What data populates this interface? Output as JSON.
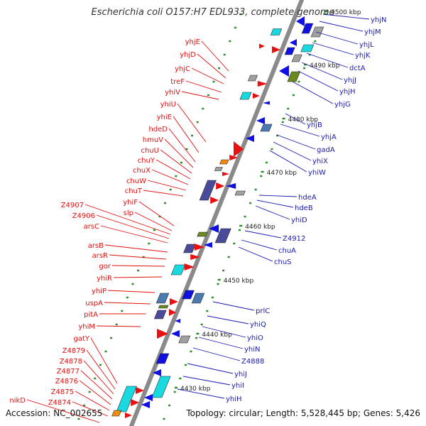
{
  "title": "Escherichia coli O157:H7 EDL933, complete genome",
  "footer": {
    "accession": "Accession: NC_002655",
    "info": "Topology: circular; Length: 5,528,445 bp; Genes: 5,426"
  },
  "colors": {
    "backbone": "#8a8a8a",
    "tick": "#2a8f2a",
    "forward_label": "#e01010",
    "reverse_label": "#1a1ab0",
    "gene_red": "#e81010",
    "gene_blue": "#1010e0",
    "gene_cyan": "#18d8e0",
    "gene_gray": "#a0a0a0",
    "gene_olive": "#6a8a20",
    "gene_purple": "#4a4a9a",
    "gene_orange": "#f08a10",
    "gene_steel": "#4a7ab0"
  },
  "scale_labels": [
    "4430 kbp",
    "4440 kbp",
    "4450 kbp",
    "4460 kbp",
    "4470 kbp",
    "4480 kbp",
    "4490 kbp",
    "4500 kbp"
  ],
  "left_genes": [
    "yhjE",
    "yhjD",
    "yhjC",
    "treF",
    "yhiV",
    "yhiU",
    "yhiE",
    "hdeD",
    "hmuV",
    "chuU",
    "chuY",
    "chuX",
    "chuW",
    "chuT",
    "yhiF",
    "slp",
    "Z4907",
    "Z4906",
    "arsC",
    "arsB",
    "arsR",
    "gor",
    "yhiR",
    "yhiP",
    "uspA",
    "pitA",
    "yhiM",
    "gatY",
    "Z4879",
    "Z4878",
    "Z4877",
    "Z4876",
    "Z4875",
    "Z4874",
    "nikD"
  ],
  "right_genes": [
    "yhjN",
    "yhjM",
    "yhjL",
    "yhjK",
    "dctA",
    "yhjJ",
    "yhjH",
    "yhjG",
    "yhjB",
    "yhjA",
    "gadA",
    "yhiX",
    "yhiW",
    "hdeA",
    "hdeB",
    "yhiD",
    "Z4912",
    "chuA",
    "chuS",
    "prlC",
    "yhiQ",
    "yhiO",
    "yhiN",
    "Z4888",
    "yhiJ",
    "yhiI",
    "yhiH"
  ]
}
